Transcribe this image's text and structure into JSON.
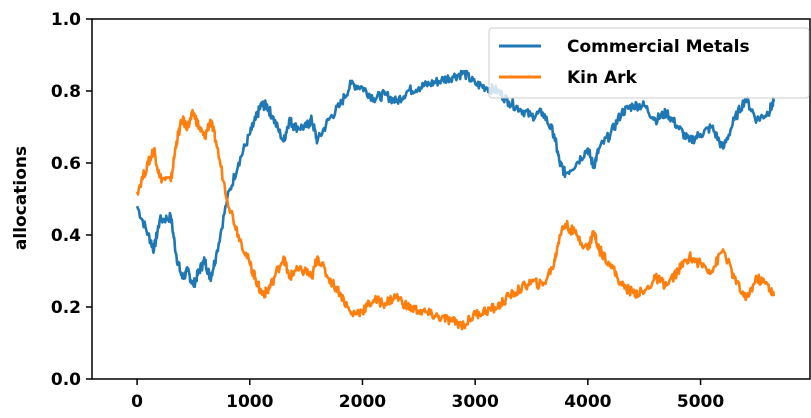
{
  "chart_data": {
    "type": "line",
    "title": "",
    "xlabel": "",
    "ylabel": "allocations",
    "xlim": [
      -400,
      5980
    ],
    "ylim": [
      0.0,
      1.0
    ],
    "xticks": [
      0,
      1000,
      2000,
      3000,
      4000,
      5000
    ],
    "yticks": [
      0.0,
      0.2,
      0.4,
      0.6,
      0.8,
      1.0
    ],
    "xtick_labels": [
      "0",
      "1000",
      "2000",
      "3000",
      "4000",
      "5000"
    ],
    "ytick_labels": [
      "0.0",
      "0.2",
      "0.4",
      "0.6",
      "0.8",
      "1.0"
    ],
    "grid": false,
    "legend_position": "top-right",
    "series": [
      {
        "name": "Commercial Metals",
        "color": "#1f77b4",
        "x": [
          0,
          100,
          150,
          200,
          300,
          350,
          400,
          450,
          500,
          550,
          600,
          650,
          700,
          800,
          900,
          1000,
          1050,
          1100,
          1150,
          1200,
          1300,
          1350,
          1400,
          1500,
          1550,
          1600,
          1700,
          1800,
          1900,
          2000,
          2100,
          2200,
          2300,
          2400,
          2500,
          2600,
          2700,
          2800,
          2900,
          3000,
          3100,
          3200,
          3300,
          3400,
          3500,
          3600,
          3700,
          3750,
          3800,
          3900,
          4000,
          4050,
          4100,
          4200,
          4300,
          4400,
          4500,
          4600,
          4700,
          4800,
          4900,
          5000,
          5100,
          5200,
          5300,
          5400,
          5500,
          5600,
          5650
        ],
        "values": [
          0.48,
          0.4,
          0.36,
          0.44,
          0.45,
          0.34,
          0.28,
          0.3,
          0.26,
          0.3,
          0.33,
          0.28,
          0.34,
          0.5,
          0.6,
          0.68,
          0.72,
          0.76,
          0.76,
          0.73,
          0.66,
          0.72,
          0.7,
          0.7,
          0.72,
          0.66,
          0.72,
          0.76,
          0.82,
          0.81,
          0.78,
          0.79,
          0.77,
          0.8,
          0.81,
          0.82,
          0.83,
          0.84,
          0.85,
          0.82,
          0.81,
          0.8,
          0.77,
          0.75,
          0.73,
          0.74,
          0.68,
          0.6,
          0.57,
          0.6,
          0.64,
          0.59,
          0.64,
          0.68,
          0.74,
          0.76,
          0.76,
          0.72,
          0.74,
          0.7,
          0.66,
          0.68,
          0.7,
          0.64,
          0.72,
          0.78,
          0.72,
          0.74,
          0.77
        ]
      },
      {
        "name": "Kin Ark",
        "color": "#ff7f0e",
        "x": [
          0,
          100,
          150,
          200,
          300,
          350,
          400,
          450,
          500,
          550,
          600,
          650,
          700,
          800,
          900,
          1000,
          1050,
          1100,
          1150,
          1200,
          1300,
          1350,
          1400,
          1500,
          1550,
          1600,
          1700,
          1800,
          1900,
          2000,
          2100,
          2200,
          2300,
          2400,
          2500,
          2600,
          2700,
          2800,
          2900,
          3000,
          3100,
          3200,
          3300,
          3400,
          3500,
          3600,
          3700,
          3750,
          3800,
          3900,
          4000,
          4050,
          4100,
          4200,
          4300,
          4400,
          4500,
          4600,
          4700,
          4800,
          4900,
          5000,
          5100,
          5200,
          5300,
          5400,
          5500,
          5600,
          5650
        ],
        "values": [
          0.52,
          0.6,
          0.64,
          0.56,
          0.55,
          0.66,
          0.72,
          0.7,
          0.74,
          0.7,
          0.67,
          0.72,
          0.66,
          0.5,
          0.4,
          0.32,
          0.28,
          0.24,
          0.24,
          0.27,
          0.34,
          0.28,
          0.3,
          0.3,
          0.28,
          0.34,
          0.28,
          0.24,
          0.18,
          0.19,
          0.22,
          0.21,
          0.23,
          0.2,
          0.19,
          0.18,
          0.17,
          0.16,
          0.15,
          0.18,
          0.19,
          0.2,
          0.23,
          0.25,
          0.27,
          0.26,
          0.32,
          0.4,
          0.43,
          0.4,
          0.36,
          0.41,
          0.36,
          0.32,
          0.26,
          0.24,
          0.24,
          0.28,
          0.26,
          0.3,
          0.34,
          0.32,
          0.3,
          0.36,
          0.28,
          0.22,
          0.28,
          0.26,
          0.23
        ]
      }
    ]
  }
}
